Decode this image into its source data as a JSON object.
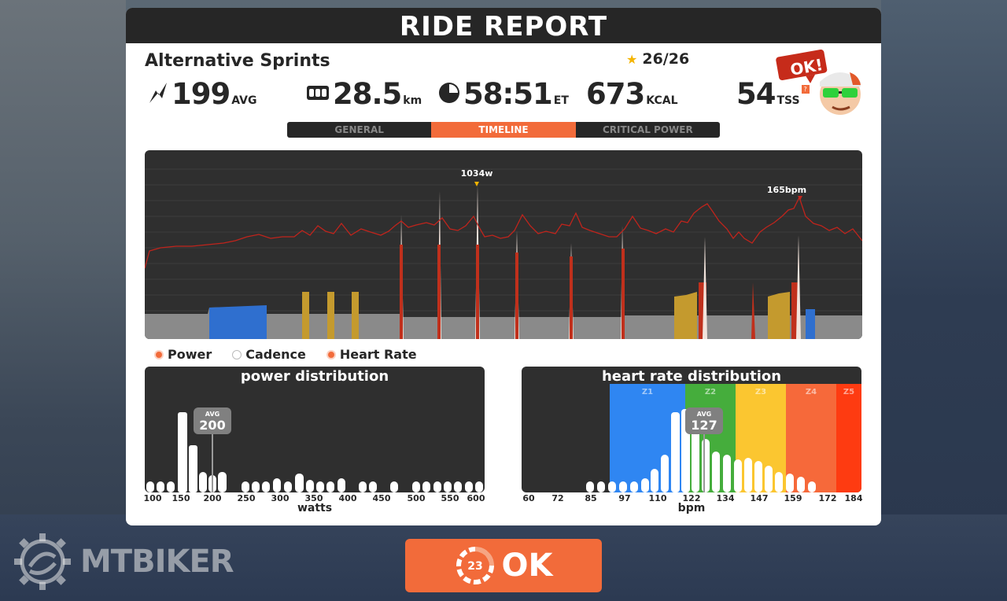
{
  "header": {
    "title": "RIDE REPORT"
  },
  "workout": {
    "name": "Alternative Sprints",
    "stars": "26/26"
  },
  "stats": {
    "power": {
      "value": "199",
      "unit": "AVG",
      "icon": "lightning-icon"
    },
    "distance": {
      "value": "28.5",
      "unit": "km",
      "icon": "odometer-icon"
    },
    "time": {
      "value": "58:51",
      "unit": "ET",
      "icon": "clock-icon"
    },
    "calories": {
      "value": "673",
      "unit": "KCAL"
    },
    "tss": {
      "value": "54",
      "unit": "TSS",
      "help": "?"
    }
  },
  "avatar": {
    "speech": "OK!"
  },
  "tabs": [
    {
      "label": "GENERAL",
      "active": false
    },
    {
      "label": "TIMELINE",
      "active": true
    },
    {
      "label": "CRITICAL POWER",
      "active": false
    }
  ],
  "timeline": {
    "peak_power_label": "1034w",
    "peak_hr_label": "165bpm",
    "colors": {
      "hr_line": "#c0241c",
      "baseline": "#8a8a8a",
      "z2": "#2f6fcf",
      "z4": "#c49a2e",
      "z6": "#c0301c"
    }
  },
  "legend": [
    {
      "label": "Power",
      "on": true
    },
    {
      "label": "Cadence",
      "on": false
    },
    {
      "label": "Heart Rate",
      "on": true
    }
  ],
  "power_distribution": {
    "title": "power distribution",
    "avg_label": "AVG",
    "avg_value": "200",
    "x_labels": [
      "100",
      "150",
      "200",
      "250",
      "300",
      "350",
      "400",
      "450",
      "500",
      "550",
      "600"
    ],
    "x_title": "watts"
  },
  "hr_distribution": {
    "title": "heart rate distribution",
    "avg_label": "AVG",
    "avg_value": "127",
    "zones": [
      {
        "label": "Z1",
        "color": "#2f86f2"
      },
      {
        "label": "Z2",
        "color": "#45ad3c"
      },
      {
        "label": "Z3",
        "color": "#fbc630"
      },
      {
        "label": "Z4",
        "color": "#f6693a"
      },
      {
        "label": "Z5",
        "color": "#fe3b11"
      }
    ],
    "x_labels": [
      "60",
      "72",
      "85",
      "97",
      "110",
      "122",
      "134",
      "147",
      "159",
      "172",
      "184"
    ],
    "x_title": "bpm"
  },
  "ok_button": {
    "countdown": "23",
    "label": "OK"
  },
  "watermark": {
    "text": "MTBIKER"
  }
}
